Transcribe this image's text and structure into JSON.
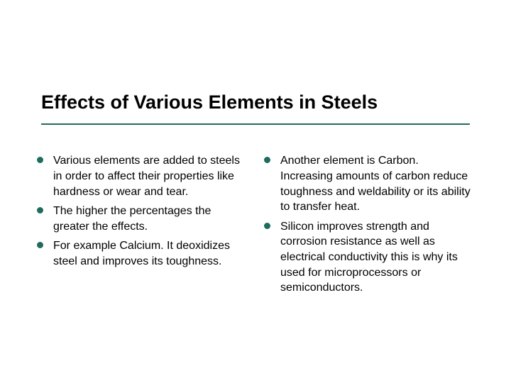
{
  "title": "Effects of Various Elements in Steels",
  "colors": {
    "accent": "#1f6b5e",
    "text": "#000000",
    "background": "#ffffff"
  },
  "typography": {
    "title_fontsize": 27,
    "title_weight": "bold",
    "body_fontsize": 16,
    "font_family": "Arial"
  },
  "layout": {
    "columns": 2,
    "underline_height": 2
  },
  "left_column": {
    "items": [
      "Various elements are added to steels in order to affect their properties like hardness or wear and tear.",
      "The higher the percentages the greater the effects.",
      "For example Calcium. It deoxidizes steel and improves its toughness."
    ]
  },
  "right_column": {
    "items": [
      "Another element is Carbon. Increasing amounts of carbon reduce toughness and weldability or its ability to transfer heat.",
      "Silicon improves strength and corrosion resistance as well as electrical conductivity this is why its used for microprocessors or semiconductors."
    ]
  }
}
